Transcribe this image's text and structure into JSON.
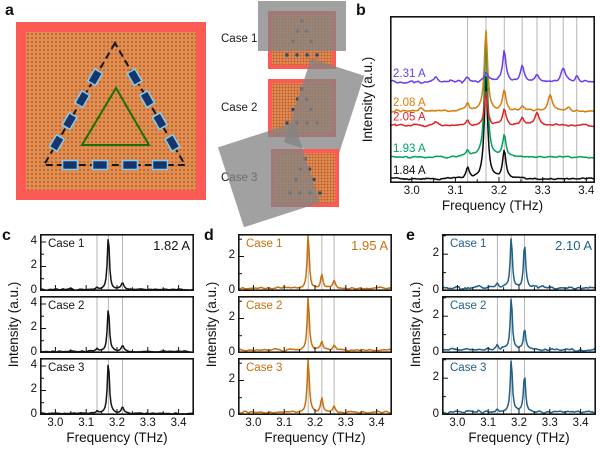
{
  "figure": {
    "panel_a": {
      "label": "a",
      "cases": [
        "Case 1",
        "Case 2",
        "Case 3"
      ]
    },
    "panel_b": {
      "label": "b",
      "xlabel": "Frequency (THz)",
      "ylabel": "Intensity (a.u.)"
    },
    "panel_c": {
      "label": "c",
      "xlabel": "Frequency (THz)",
      "ylabel": "Intensity (a.u.)"
    },
    "panel_d": {
      "label": "d",
      "xlabel": "Frequency (THz)",
      "ylabel": "Intensity (a.u.)"
    },
    "panel_e": {
      "label": "e",
      "xlabel": "Frequency (THz)",
      "ylabel": "Intensity (a.u.)"
    }
  },
  "colors": {
    "frame_red": "#fb5a55",
    "lattice_orange": "#df904f",
    "lattice_dot": "#bf5b38",
    "marker_fill": "#16356b",
    "marker_border": "#8cc8e8",
    "triangle_green": "#1c6e08",
    "dashed_outline": "#161616",
    "case_dot": "#1d4e7c",
    "overlay_gray": "#838383",
    "grid_gray": "#b5b5b5"
  },
  "chart_data": [
    {
      "id": "b",
      "type": "line",
      "xlabel": "Frequency (THz)",
      "ylabel": "Intensity (a.u.)",
      "xlim": [
        2.95,
        3.42
      ],
      "xticks": [
        "3.0",
        "3.1",
        "3.2",
        "3.3",
        "3.4"
      ],
      "ylim": [
        0,
        1
      ],
      "yticks": [],
      "grid_frequencies_thz": [
        3.128,
        3.17,
        3.212,
        3.253,
        3.287,
        3.317,
        3.347,
        3.378
      ],
      "legend_position": "left-stacked-on-traces",
      "series": [
        {
          "name": "1.84 A",
          "color": "#0a0a0a",
          "baseline": 0.025,
          "noise": 0.008,
          "peaks_f_h_w": [
            [
              3.128,
              0.06,
              0.004
            ],
            [
              3.17,
              0.61,
              0.0045
            ],
            [
              3.212,
              0.17,
              0.0045
            ]
          ]
        },
        {
          "name": "1.93 A",
          "color": "#00a35c",
          "baseline": 0.155,
          "noise": 0.008,
          "peaks_f_h_w": [
            [
              3.128,
              0.04,
              0.004
            ],
            [
              3.17,
              0.7,
              0.0045
            ],
            [
              3.212,
              0.13,
              0.0045
            ]
          ]
        },
        {
          "name": "2.05 A",
          "color": "#e32222",
          "baseline": 0.345,
          "noise": 0.009,
          "peaks_f_h_w": [
            [
              3.055,
              0.02,
              0.005
            ],
            [
              3.128,
              0.03,
              0.004
            ],
            [
              3.17,
              0.2,
              0.0045
            ],
            [
              3.212,
              0.1,
              0.0045
            ],
            [
              3.253,
              0.045,
              0.005
            ],
            [
              3.287,
              0.075,
              0.006
            ]
          ]
        },
        {
          "name": "2.08 A",
          "color": "#d87d0a",
          "baseline": 0.43,
          "noise": 0.009,
          "peaks_f_h_w": [
            [
              3.02,
              0.02,
              0.006
            ],
            [
              3.128,
              0.05,
              0.004
            ],
            [
              3.17,
              0.48,
              0.0045
            ],
            [
              3.212,
              0.12,
              0.0045
            ],
            [
              3.253,
              0.03,
              0.005
            ],
            [
              3.317,
              0.1,
              0.006
            ],
            [
              3.36,
              0.02,
              0.005
            ]
          ]
        },
        {
          "name": "2.31 A",
          "color": "#6b3bf2",
          "baseline": 0.605,
          "noise": 0.01,
          "peaks_f_h_w": [
            [
              3.055,
              0.03,
              0.005
            ],
            [
              3.128,
              0.025,
              0.005
            ],
            [
              3.17,
              0.05,
              0.005
            ],
            [
              3.212,
              0.19,
              0.0045
            ],
            [
              3.253,
              0.1,
              0.005
            ],
            [
              3.287,
              0.04,
              0.005
            ],
            [
              3.347,
              0.08,
              0.006
            ],
            [
              3.378,
              0.03,
              0.005
            ]
          ]
        }
      ]
    },
    {
      "id": "c",
      "type": "line",
      "annotation": "1.82 A",
      "color": "#141414",
      "xlabel": "Frequency (THz)",
      "ylabel": "Intensity (a.u.)",
      "xlim": [
        2.95,
        3.45
      ],
      "xticks": [
        "3.0",
        "3.1",
        "3.2",
        "3.3",
        "3.4"
      ],
      "ylim": [
        0,
        4.65
      ],
      "yticks": [
        "0",
        "2",
        "4"
      ],
      "yticks_minor": [
        1,
        3
      ],
      "grid_frequencies_thz": [
        3.135,
        3.172,
        3.218
      ],
      "subplots": [
        {
          "name": "Case 1",
          "baseline": 0.12,
          "noise": 0.07,
          "peaks_f_h_w": [
            [
              3.05,
              0.06,
              0.006
            ],
            [
              3.135,
              0.18,
              0.004
            ],
            [
              3.172,
              4.45,
              0.004
            ],
            [
              3.218,
              0.5,
              0.005
            ]
          ]
        },
        {
          "name": "Case 2",
          "baseline": 0.12,
          "noise": 0.07,
          "peaks_f_h_w": [
            [
              3.135,
              0.22,
              0.004
            ],
            [
              3.172,
              3.6,
              0.004
            ],
            [
              3.218,
              0.45,
              0.005
            ]
          ]
        },
        {
          "name": "Case 3",
          "baseline": 0.12,
          "noise": 0.07,
          "peaks_f_h_w": [
            [
              3.135,
              0.15,
              0.004
            ],
            [
              3.172,
              4.3,
              0.004
            ],
            [
              3.218,
              0.55,
              0.005
            ]
          ]
        }
      ]
    },
    {
      "id": "d",
      "type": "line",
      "annotation": "1.95 A",
      "color": "#c9700d",
      "xlabel": "Frequency (THz)",
      "ylabel": "Intensity (a.u.)",
      "xlim": [
        2.95,
        3.45
      ],
      "xticks": [
        "3.0",
        "3.1",
        "3.2",
        "3.3",
        "3.4"
      ],
      "ylim": [
        0,
        3.3
      ],
      "yticks": [
        "0",
        "2"
      ],
      "yticks_minor": [
        1,
        3
      ],
      "grid_frequencies_thz": [
        3.178,
        3.222,
        3.262
      ],
      "subplots": [
        {
          "name": "Case 1",
          "baseline": 0.15,
          "noise": 0.08,
          "peaks_f_h_w": [
            [
              3.1,
              0.12,
              0.006
            ],
            [
              3.178,
              3.12,
              0.004
            ],
            [
              3.222,
              0.85,
              0.0045
            ],
            [
              3.262,
              0.42,
              0.005
            ]
          ]
        },
        {
          "name": "Case 2",
          "baseline": 0.15,
          "noise": 0.08,
          "peaks_f_h_w": [
            [
              3.07,
              0.1,
              0.006
            ],
            [
              3.178,
              3.15,
              0.004
            ],
            [
              3.222,
              0.52,
              0.0045
            ],
            [
              3.262,
              0.3,
              0.005
            ]
          ]
        },
        {
          "name": "Case 3",
          "baseline": 0.15,
          "noise": 0.08,
          "peaks_f_h_w": [
            [
              3.178,
              3.05,
              0.004
            ],
            [
              3.222,
              0.8,
              0.0045
            ],
            [
              3.262,
              0.35,
              0.005
            ]
          ]
        }
      ]
    },
    {
      "id": "e",
      "type": "line",
      "annotation": "2.10 A",
      "color": "#1f618c",
      "xlabel": "Frequency (THz)",
      "ylabel": "Intensity (a.u.)",
      "xlim": [
        2.95,
        3.45
      ],
      "xticks": [
        "3.0",
        "3.1",
        "3.2",
        "3.3",
        "3.4"
      ],
      "ylim": [
        0,
        3.1
      ],
      "yticks": [
        "0",
        "2"
      ],
      "yticks_minor": [
        1,
        3
      ],
      "grid_frequencies_thz": [
        3.13,
        3.175,
        3.218
      ],
      "subplots": [
        {
          "name": "Case 1",
          "baseline": 0.18,
          "noise": 0.11,
          "peaks_f_h_w": [
            [
              3.06,
              0.12,
              0.006
            ],
            [
              3.13,
              0.3,
              0.005
            ],
            [
              3.175,
              2.8,
              0.004
            ],
            [
              3.218,
              2.4,
              0.004
            ]
          ]
        },
        {
          "name": "Case 2",
          "baseline": 0.18,
          "noise": 0.11,
          "peaks_f_h_w": [
            [
              3.13,
              0.28,
              0.005
            ],
            [
              3.175,
              2.92,
              0.004
            ],
            [
              3.218,
              1.15,
              0.004
            ]
          ]
        },
        {
          "name": "Case 3",
          "baseline": 0.16,
          "noise": 0.1,
          "peaks_f_h_w": [
            [
              3.13,
              0.2,
              0.005
            ],
            [
              3.175,
              2.92,
              0.004
            ],
            [
              3.218,
              2.05,
              0.004
            ]
          ]
        }
      ]
    }
  ]
}
